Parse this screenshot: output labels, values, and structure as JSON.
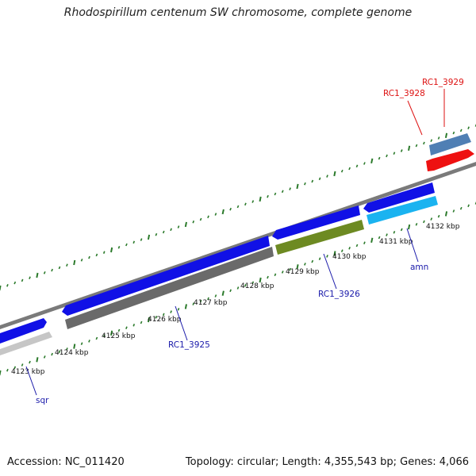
{
  "title": "Rhodospirillum centenum SW chromosome, complete genome",
  "accession": "Accession: NC_011420",
  "summary": "Topology: circular; Length: 4,355,543 bp; Genes: 4,066",
  "colors": {
    "blue": "#1010e6",
    "steel": "#4f7fb4",
    "red": "#ee1111",
    "cyan": "#1ab3f0",
    "olive": "#6d8a22",
    "gray": "#6a6a6a",
    "lightgray": "#c6c6c6",
    "backbone": "#7a7a7a",
    "tick": "#2b7a2b",
    "label_blue": "#1a1aaa",
    "label_red": "#dd1111"
  },
  "ticks": [
    {
      "label": "4123 kbp"
    },
    {
      "label": "4124 kbp"
    },
    {
      "label": "4125 kbp"
    },
    {
      "label": "4126 kbp"
    },
    {
      "label": "4127 kbp"
    },
    {
      "label": "4128 kbp"
    },
    {
      "label": "4129 kbp"
    },
    {
      "label": "4130 kbp"
    },
    {
      "label": "4131 kbp"
    },
    {
      "label": "4132 kbp"
    }
  ],
  "gene_labels": [
    {
      "name": "sqr",
      "color": "blue"
    },
    {
      "name": "RC1_3925",
      "color": "blue"
    },
    {
      "name": "RC1_3926",
      "color": "blue"
    },
    {
      "name": "amn",
      "color": "blue"
    },
    {
      "name": "RC1_3928",
      "color": "red"
    },
    {
      "name": "RC1_3929",
      "color": "red"
    }
  ]
}
